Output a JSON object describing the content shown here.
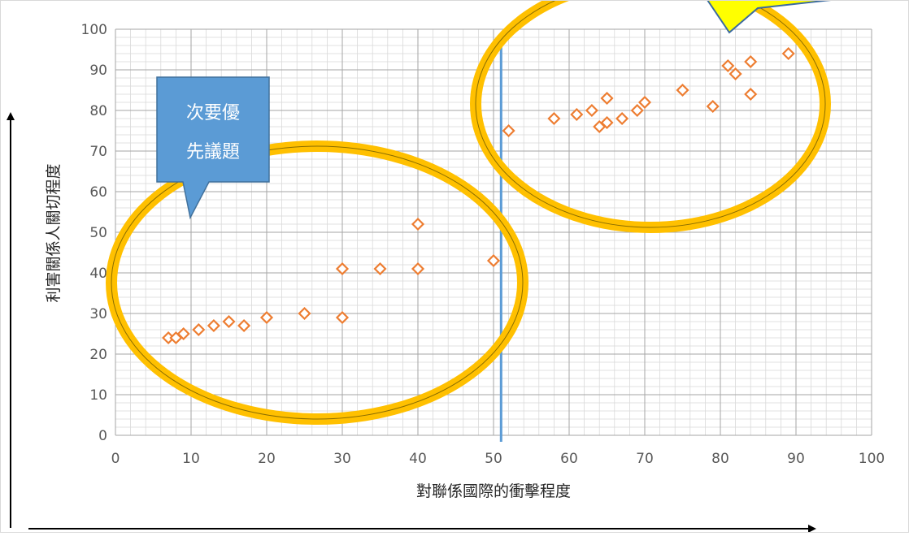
{
  "chart_data": {
    "type": "scatter",
    "xlabel": "對聯係國際的衝擊程度",
    "ylabel": "利害關係人關切程度",
    "xlim": [
      0,
      100
    ],
    "ylim": [
      0,
      100
    ],
    "x_ticks": [
      0,
      10,
      20,
      30,
      40,
      50,
      60,
      70,
      80,
      90,
      100
    ],
    "y_ticks": [
      0,
      10,
      20,
      30,
      40,
      50,
      60,
      70,
      80,
      90,
      100
    ],
    "grid": true,
    "marker": "diamond-outline",
    "marker_color": "#ed7d31",
    "vertical_line_x": 51,
    "vertical_line_color": "#5b9bd5",
    "points": [
      {
        "x": 7,
        "y": 24
      },
      {
        "x": 8,
        "y": 24
      },
      {
        "x": 9,
        "y": 25
      },
      {
        "x": 11,
        "y": 26
      },
      {
        "x": 13,
        "y": 27
      },
      {
        "x": 15,
        "y": 28
      },
      {
        "x": 17,
        "y": 27
      },
      {
        "x": 20,
        "y": 29
      },
      {
        "x": 25,
        "y": 30
      },
      {
        "x": 30,
        "y": 29
      },
      {
        "x": 30,
        "y": 41
      },
      {
        "x": 35,
        "y": 41
      },
      {
        "x": 40,
        "y": 41
      },
      {
        "x": 40,
        "y": 52
      },
      {
        "x": 50,
        "y": 43
      },
      {
        "x": 52,
        "y": 75
      },
      {
        "x": 58,
        "y": 78
      },
      {
        "x": 61,
        "y": 79
      },
      {
        "x": 63,
        "y": 80
      },
      {
        "x": 64,
        "y": 76
      },
      {
        "x": 65,
        "y": 77
      },
      {
        "x": 65,
        "y": 83
      },
      {
        "x": 67,
        "y": 78
      },
      {
        "x": 69,
        "y": 80
      },
      {
        "x": 70,
        "y": 82
      },
      {
        "x": 75,
        "y": 85
      },
      {
        "x": 79,
        "y": 81
      },
      {
        "x": 81,
        "y": 91
      },
      {
        "x": 82,
        "y": 89
      },
      {
        "x": 84,
        "y": 92
      },
      {
        "x": 84,
        "y": 84
      },
      {
        "x": 89,
        "y": 94
      }
    ],
    "annotations": {
      "callout_text": [
        "次要優",
        "先議題"
      ],
      "callout_color": "#5b9bd5",
      "ellipse_color": "#ffc000",
      "star_color": "#ffff00"
    }
  }
}
